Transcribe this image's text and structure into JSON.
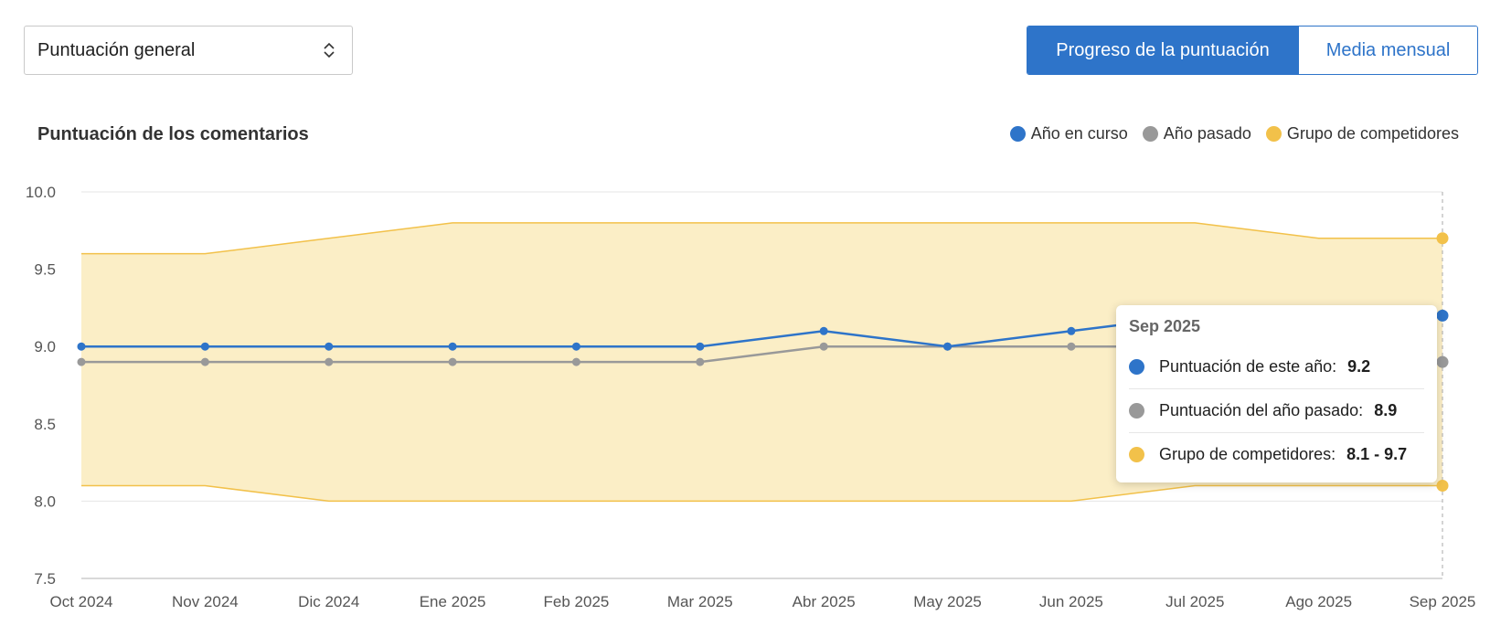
{
  "controls": {
    "metric_select": {
      "value": "Puntuación general"
    },
    "view_toggle": {
      "active": "Progreso de la puntuación",
      "inactive": "Media mensual"
    }
  },
  "colors": {
    "current_year": "#2e74c9",
    "last_year": "#999999",
    "competitors": "#f2c14a",
    "competitor_band": "#fbeec6"
  },
  "chart_data": {
    "type": "line",
    "title": "Puntuación de los comentarios",
    "legend_position": "top-right",
    "legend": [
      "Año en curso",
      "Año pasado",
      "Grupo de competidores"
    ],
    "categories": [
      "Oct 2024",
      "Nov 2024",
      "Dic 2024",
      "Ene 2025",
      "Feb 2025",
      "Mar 2025",
      "Abr 2025",
      "May 2025",
      "Jun 2025",
      "Jul 2025",
      "Ago 2025",
      "Sep 2025"
    ],
    "series": [
      {
        "name": "Año en curso",
        "values": [
          9.0,
          9.0,
          9.0,
          9.0,
          9.0,
          9.0,
          9.1,
          9.0,
          9.1,
          9.2,
          9.2,
          9.2
        ]
      },
      {
        "name": "Año pasado",
        "values": [
          8.9,
          8.9,
          8.9,
          8.9,
          8.9,
          8.9,
          9.0,
          9.0,
          9.0,
          9.0,
          9.0,
          8.9
        ]
      }
    ],
    "band": {
      "name": "Grupo de competidores",
      "upper": [
        9.6,
        9.6,
        9.7,
        9.8,
        9.8,
        9.8,
        9.8,
        9.8,
        9.8,
        9.8,
        9.7,
        9.7
      ],
      "lower": [
        8.1,
        8.1,
        8.0,
        8.0,
        8.0,
        8.0,
        8.0,
        8.0,
        8.0,
        8.1,
        8.1,
        8.1
      ]
    },
    "ylim": [
      7.5,
      10.0
    ],
    "yticks": [
      "10.0",
      "9.5",
      "9.0",
      "8.5",
      "8.0",
      "7.5"
    ],
    "grid": true,
    "xlabel": "",
    "ylabel": ""
  },
  "tooltip": {
    "title": "Sep 2025",
    "rows": [
      {
        "label": "Puntuación de este año:",
        "value": "9.2"
      },
      {
        "label": "Puntuación del año pasado:",
        "value": "8.9"
      },
      {
        "label": "Grupo de competidores:",
        "value": "8.1 - 9.7"
      }
    ]
  }
}
